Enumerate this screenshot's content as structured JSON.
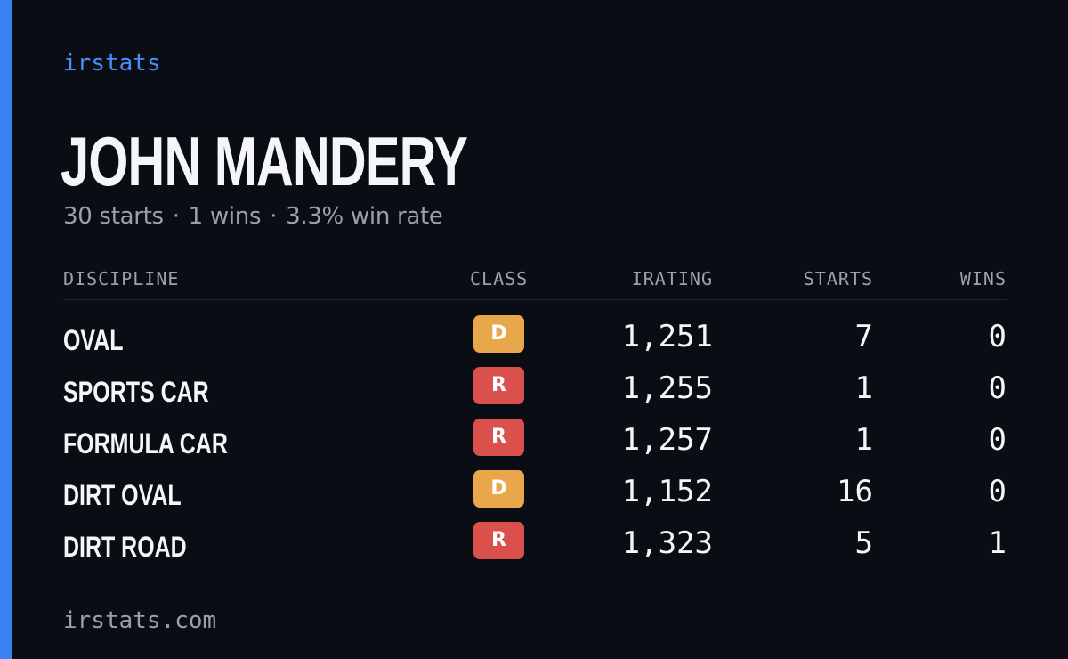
{
  "brand": "irstats",
  "driver": {
    "name": "JOHN MANDERY"
  },
  "summary": {
    "starts": "30 starts",
    "wins": "1 wins",
    "win_rate": "3.3% win rate",
    "separator": "·"
  },
  "table": {
    "headers": {
      "discipline": "DISCIPLINE",
      "class": "CLASS",
      "irating": "IRATING",
      "starts": "STARTS",
      "wins": "WINS"
    },
    "rows": [
      {
        "discipline": "OVAL",
        "class": "D",
        "class_color": "#e8a74a",
        "irating": "1,251",
        "starts": "7",
        "wins": "0"
      },
      {
        "discipline": "SPORTS CAR",
        "class": "R",
        "class_color": "#d9504c",
        "irating": "1,255",
        "starts": "1",
        "wins": "0"
      },
      {
        "discipline": "FORMULA CAR",
        "class": "R",
        "class_color": "#d9504c",
        "irating": "1,257",
        "starts": "1",
        "wins": "0"
      },
      {
        "discipline": "DIRT OVAL",
        "class": "D",
        "class_color": "#e8a74a",
        "irating": "1,152",
        "starts": "16",
        "wins": "0"
      },
      {
        "discipline": "DIRT ROAD",
        "class": "R",
        "class_color": "#d9504c",
        "irating": "1,323",
        "starts": "5",
        "wins": "1"
      }
    ]
  },
  "footer": {
    "url": "irstats.com"
  },
  "colors": {
    "accent": "#3b82f6",
    "background": "#0b0d14",
    "class_d": "#e8a74a",
    "class_r": "#d9504c"
  }
}
